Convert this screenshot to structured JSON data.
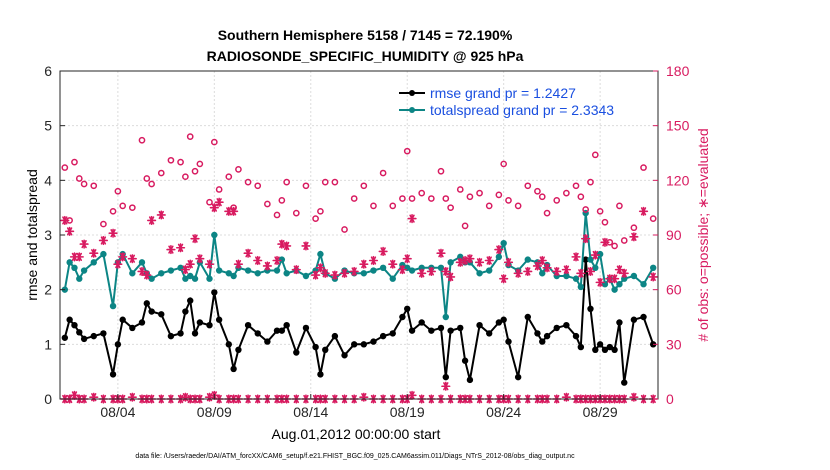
{
  "chart_data": {
    "type": "line",
    "title": "Southern Hemisphere 5158 / 7145 = 72.190%",
    "subtitle": "RADIOSONDE_SPECIFIC_HUMIDITY @ 925 hPa",
    "xlabel": "Aug.01,2012 00:00:00 start",
    "ylabel_left": "rmse and totalspread",
    "ylabel_right": "# of obs: o=possible; ∗=evaluated",
    "footer": "data file: /Users/raeder/DAI/ATM_forcXX/CAM6_setup/f.e21.FHIST_BGC.f09_025.CAM6assim.011/Diags_NTrS_2012-08/obs_diag_output.nc",
    "xlim": [
      1,
      32
    ],
    "ylim_left": [
      0,
      6
    ],
    "ylim_right": [
      0,
      180
    ],
    "x_ticks": [
      4,
      9,
      14,
      19,
      24,
      29
    ],
    "x_tick_labels": [
      "08/04",
      "08/09",
      "08/14",
      "08/19",
      "08/24",
      "08/29"
    ],
    "y_ticks_left": [
      "0",
      "1",
      "2",
      "3",
      "4",
      "5",
      "6"
    ],
    "y_ticks_right": [
      "0",
      "30",
      "60",
      "90",
      "120",
      "150",
      "180"
    ],
    "grid": true,
    "x": [
      1.25,
      1.5,
      1.75,
      2,
      2.25,
      2.75,
      3.25,
      3.75,
      4,
      4.25,
      4.75,
      5.25,
      5.5,
      5.75,
      6.25,
      6.75,
      7.25,
      7.5,
      7.75,
      8,
      8.25,
      8.75,
      9,
      9.25,
      9.75,
      10,
      10.25,
      10.75,
      11.25,
      11.75,
      12.25,
      12.5,
      12.75,
      13.25,
      13.75,
      14.25,
      14.5,
      14.75,
      15.25,
      15.75,
      16.25,
      16.75,
      17.25,
      17.75,
      18.25,
      18.75,
      19,
      19.25,
      19.75,
      20.25,
      20.75,
      21,
      21.25,
      21.75,
      22,
      22.25,
      22.75,
      23.25,
      23.75,
      24,
      24.25,
      24.75,
      25.25,
      25.75,
      26,
      26.25,
      26.75,
      27.25,
      27.75,
      28,
      28.25,
      28.5,
      28.75,
      29,
      29.25,
      29.5,
      29.75,
      30,
      30.25,
      30.75,
      31.25,
      31.75
    ],
    "series": [
      {
        "name": "rmse",
        "legend": "rmse grand pr = 1.2427",
        "color": "#000000",
        "marker": "dot",
        "values": [
          1.12,
          1.45,
          1.35,
          1.22,
          1.1,
          1.15,
          1.2,
          0.45,
          1.0,
          1.45,
          1.3,
          1.4,
          1.75,
          1.6,
          1.55,
          1.15,
          1.2,
          1.6,
          1.8,
          1.2,
          1.4,
          1.35,
          1.95,
          1.45,
          1.0,
          0.55,
          0.9,
          1.35,
          1.2,
          1.05,
          1.25,
          1.25,
          1.35,
          0.85,
          1.3,
          0.95,
          0.45,
          0.9,
          1.15,
          0.8,
          1.0,
          1.0,
          1.05,
          1.15,
          1.2,
          1.5,
          1.65,
          1.25,
          1.4,
          1.25,
          1.3,
          0.4,
          1.25,
          1.3,
          0.7,
          0.35,
          1.35,
          1.2,
          1.4,
          1.45,
          1.05,
          0.4,
          1.5,
          1.2,
          1.05,
          1.15,
          1.3,
          1.35,
          1.15,
          0.95,
          2.55,
          1.65,
          0.9,
          1.0,
          0.9,
          0.95,
          0.9,
          1.4,
          0.3,
          1.45,
          1.5,
          1.0
        ]
      },
      {
        "name": "totalspread",
        "legend": "totalspread grand pr = 2.3343",
        "color": "#0c8585",
        "marker": "dot",
        "values": [
          2.0,
          2.5,
          2.4,
          2.2,
          2.35,
          2.5,
          2.65,
          1.7,
          2.5,
          2.65,
          2.3,
          2.5,
          2.3,
          2.2,
          2.3,
          2.35,
          2.4,
          2.2,
          2.25,
          2.2,
          2.5,
          2.2,
          3.0,
          2.35,
          2.3,
          2.25,
          2.4,
          2.35,
          2.3,
          2.35,
          2.35,
          2.55,
          2.3,
          2.35,
          2.25,
          2.35,
          2.65,
          2.3,
          2.2,
          2.35,
          2.3,
          2.3,
          2.35,
          2.4,
          2.2,
          2.45,
          2.4,
          2.35,
          2.4,
          2.4,
          2.4,
          1.5,
          2.5,
          2.6,
          2.5,
          2.5,
          2.3,
          2.35,
          2.6,
          2.85,
          2.45,
          2.35,
          2.55,
          2.5,
          2.3,
          2.45,
          2.25,
          2.25,
          2.2,
          2.05,
          3.4,
          2.55,
          2.4,
          2.65,
          2.1,
          2.2,
          2.0,
          2.1,
          2.2,
          2.25,
          2.1,
          2.4
        ]
      },
      {
        "name": "obs possible",
        "color": "#d81b60",
        "marker": "o",
        "axis": "right",
        "values": [
          127,
          98,
          130,
          121,
          118,
          117,
          96,
          103,
          114,
          106,
          105,
          142,
          121,
          118,
          124,
          131,
          130,
          122,
          144,
          125,
          129,
          108,
          141,
          115,
          122,
          105,
          126,
          119,
          117,
          107,
          101,
          109,
          119,
          102,
          117,
          99,
          103,
          119,
          119,
          93,
          110,
          117,
          106,
          124,
          106,
          110,
          136,
          110,
          113,
          110,
          125,
          110,
          105,
          115,
          95,
          111,
          113,
          106,
          112,
          129,
          109,
          106,
          117,
          114,
          111,
          102,
          109,
          113,
          117,
          111,
          104,
          119,
          134,
          103,
          97,
          86,
          84,
          106,
          87,
          94,
          127,
          99
        ]
      },
      {
        "name": "obs evaluated",
        "color": "#d81b60",
        "marker": "*",
        "axis": "right",
        "values": [
          98,
          92,
          78,
          78,
          85,
          80,
          87,
          91,
          74,
          78,
          77,
          70,
          68,
          98,
          101,
          82,
          83,
          71,
          74,
          88,
          77,
          74,
          105,
          108,
          103,
          103,
          74,
          80,
          76,
          73,
          76,
          85,
          84,
          71,
          84,
          68,
          72,
          69,
          68,
          69,
          70,
          74,
          76,
          81,
          74,
          71,
          77,
          99,
          69,
          70,
          80,
          70,
          67,
          75,
          76,
          77,
          75,
          76,
          82,
          66,
          75,
          69,
          70,
          73,
          76,
          72,
          70,
          71,
          78,
          69,
          88,
          70,
          79,
          64,
          86,
          66,
          66,
          71,
          69,
          89,
          103,
          67
        ]
      },
      {
        "name": "obs zero",
        "color": "#d81b60",
        "marker": "*",
        "axis": "right",
        "values": [
          0,
          0,
          2,
          0,
          0,
          1,
          0,
          0,
          0,
          0,
          1,
          0,
          0,
          0,
          0,
          0,
          0,
          1,
          0,
          0,
          0,
          1,
          2,
          0,
          0,
          0,
          0,
          0,
          0,
          0,
          0,
          0,
          0,
          0,
          0,
          0,
          0,
          0,
          0,
          0,
          0,
          1,
          0,
          0,
          0,
          0,
          0,
          2,
          0,
          0,
          0,
          7,
          0,
          0,
          0,
          0,
          0,
          0,
          0,
          0,
          0,
          0,
          0,
          0,
          0,
          0,
          0,
          1,
          0,
          0,
          0,
          0,
          0,
          0,
          0,
          0,
          0,
          0,
          0,
          1,
          0,
          0
        ]
      }
    ]
  }
}
